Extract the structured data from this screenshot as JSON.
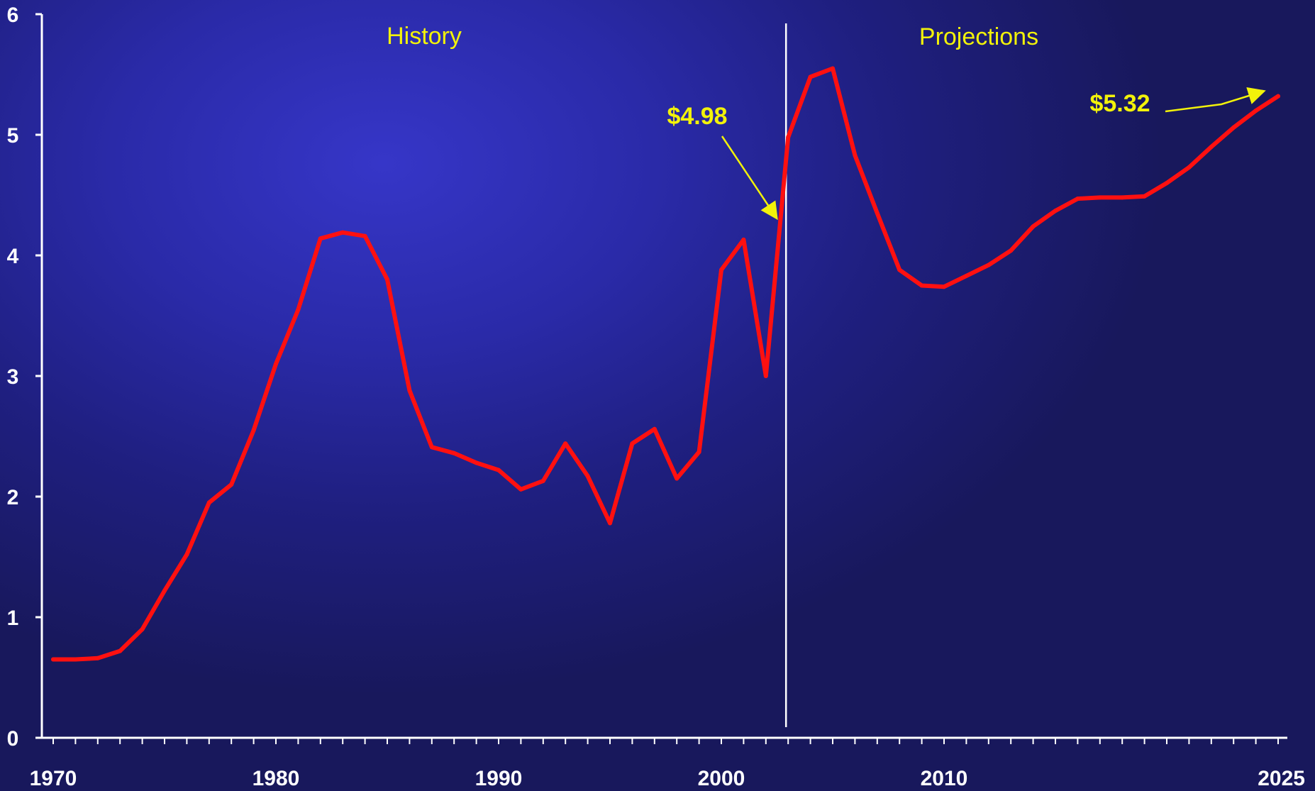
{
  "chart_data": {
    "type": "line",
    "title": "",
    "xlabel": "",
    "ylabel": "",
    "xlim": [
      1970,
      2025
    ],
    "ylim": [
      0,
      6
    ],
    "y_ticks": [
      0,
      1,
      2,
      3,
      4,
      5,
      6
    ],
    "y_tick_labels": [
      "0",
      "1",
      "2",
      "3",
      "4",
      "5",
      "6"
    ],
    "x_tick_labels_shown": [
      1970,
      1980,
      1990,
      2000,
      2010,
      2025
    ],
    "x_tick_label_text": [
      "1970",
      "1980",
      "1990",
      "2000",
      "2010",
      "2025"
    ],
    "grid": false,
    "divider_x": 2003,
    "regions": [
      {
        "label": "History"
      },
      {
        "label": "Projections"
      }
    ],
    "annotations": [
      {
        "text": "$4.98",
        "x": 2003,
        "y": 4.98
      },
      {
        "text": "$5.32",
        "x": 2025,
        "y": 5.32
      }
    ],
    "colors": {
      "line": "#ff1010",
      "annotation": "#f2f20a",
      "axis": "#ffffff"
    },
    "series": [
      {
        "x": [
          1970,
          1971,
          1972,
          1973,
          1974,
          1975,
          1976,
          1977,
          1978,
          1979,
          1980,
          1981,
          1982,
          1983,
          1984,
          1985,
          1986,
          1987,
          1988,
          1989,
          1990,
          1991,
          1992,
          1993,
          1994,
          1995,
          1996,
          1997,
          1998,
          1999,
          2000,
          2001,
          2002,
          2003,
          2004,
          2005,
          2006,
          2007,
          2008,
          2009,
          2010,
          2011,
          2012,
          2013,
          2014,
          2015,
          2016,
          2017,
          2018,
          2019,
          2020,
          2021,
          2022,
          2023,
          2024,
          2025
        ],
        "values": [
          0.65,
          0.65,
          0.66,
          0.72,
          0.9,
          1.22,
          1.52,
          1.95,
          2.1,
          2.55,
          3.1,
          3.55,
          4.14,
          4.19,
          4.16,
          3.8,
          2.88,
          2.41,
          2.36,
          2.28,
          2.22,
          2.06,
          2.13,
          2.44,
          2.17,
          1.78,
          2.44,
          2.56,
          2.15,
          2.37,
          3.88,
          4.13,
          3.0,
          4.98,
          5.48,
          5.55,
          4.83,
          4.35,
          3.88,
          3.75,
          3.74,
          3.83,
          3.92,
          4.04,
          4.24,
          4.37,
          4.47,
          4.48,
          4.48,
          4.49,
          4.6,
          4.73,
          4.9,
          5.06,
          5.2,
          5.32
        ]
      }
    ]
  }
}
